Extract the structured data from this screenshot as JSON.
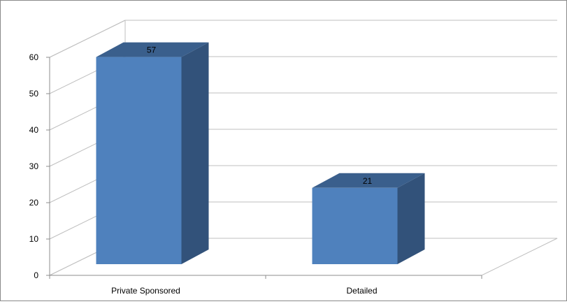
{
  "chart_data": {
    "type": "bar",
    "style": "3d-column",
    "categories": [
      "Private Sponsored",
      "Detailed"
    ],
    "values": [
      57,
      21
    ],
    "data_labels": [
      "57",
      "21"
    ],
    "ylim": [
      0,
      60
    ],
    "yticks": [
      0,
      10,
      20,
      30,
      40,
      50,
      60
    ],
    "ytick_labels": [
      "0",
      "10",
      "20",
      "30",
      "40",
      "50",
      "60"
    ],
    "grid": true,
    "legend": "none",
    "title": "",
    "xlabel": "",
    "ylabel": ""
  },
  "colors": {
    "bar_front": "#4f81bd",
    "bar_side": "#32527a",
    "bar_top": "#3a5f8c",
    "grid": "#bfbfbf",
    "axis": "#8c8c8c"
  }
}
